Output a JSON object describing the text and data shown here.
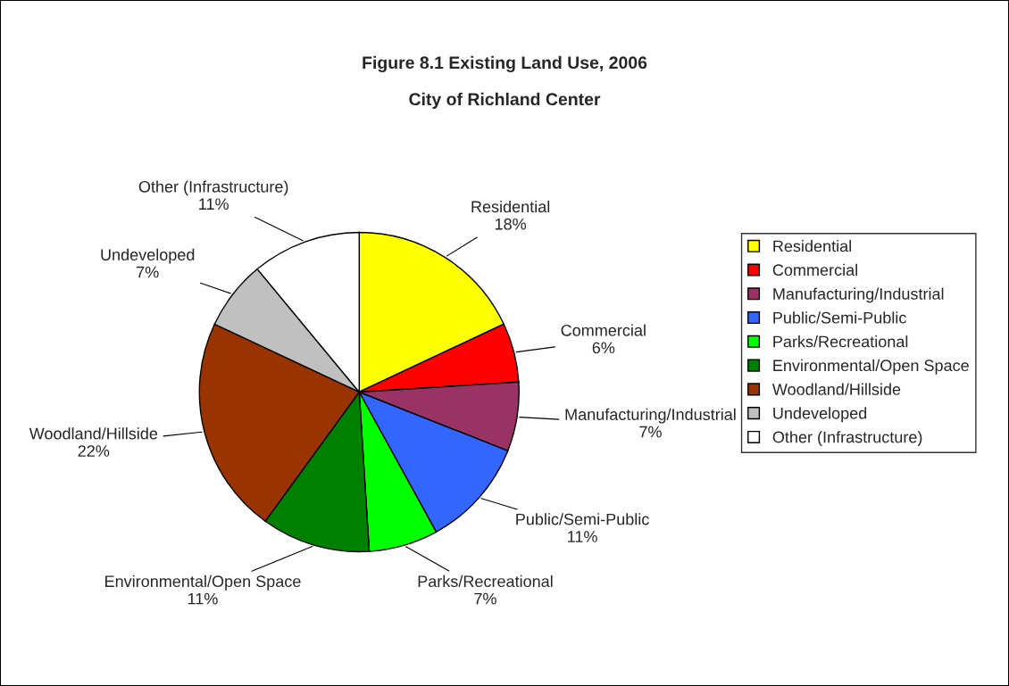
{
  "chart_data": {
    "type": "pie",
    "title": "Figure 8.1 Existing Land Use, 2006",
    "subtitle": "City of Richland Center",
    "categories": [
      "Residential",
      "Commercial",
      "Manufacturing/Industrial",
      "Public/Semi-Public",
      "Parks/Recreational",
      "Environmental/Open Space",
      "Woodland/Hillside",
      "Undeveloped",
      "Other (Infrastructure)"
    ],
    "values": [
      18,
      6,
      7,
      11,
      7,
      11,
      22,
      7,
      11
    ],
    "colors": [
      "#ffff00",
      "#ff0000",
      "#993366",
      "#3366ff",
      "#00ff00",
      "#008000",
      "#993300",
      "#c0c0c0",
      "#ffffff"
    ],
    "value_labels": [
      "18%",
      "6%",
      "7%",
      "11%",
      "7%",
      "11%",
      "22%",
      "7%",
      "11%"
    ],
    "legend": "right"
  }
}
